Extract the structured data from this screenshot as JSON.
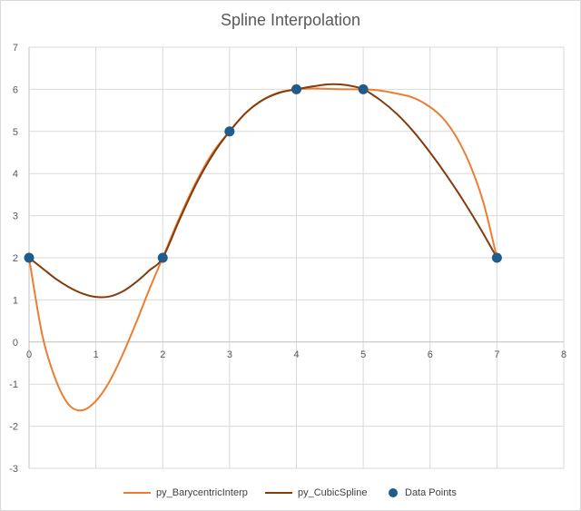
{
  "chart_data": {
    "type": "line",
    "title": "Spline Interpolation",
    "xlim": [
      0,
      8
    ],
    "ylim": [
      -3,
      7
    ],
    "xticks": [
      0,
      1,
      2,
      3,
      4,
      5,
      6,
      7,
      8
    ],
    "yticks": [
      -3,
      -2,
      -1,
      0,
      1,
      2,
      3,
      4,
      5,
      6,
      7
    ],
    "grid": true,
    "legend_position": "bottom",
    "series": [
      {
        "name": "py_BarycentricInterp",
        "kind": "line",
        "color": "#ed7d31",
        "x": [
          0,
          0.2,
          0.4,
          0.6,
          0.8,
          1.0,
          1.2,
          1.4,
          1.6,
          1.8,
          2.0,
          2.25,
          2.5,
          2.75,
          3.0,
          3.25,
          3.5,
          3.75,
          4.0,
          4.25,
          4.5,
          4.75,
          5.0,
          5.25,
          5.5,
          5.75,
          6.0,
          6.2,
          6.4,
          6.6,
          6.8,
          7.0
        ],
        "y": [
          2.0,
          0.15,
          -0.9,
          -1.5,
          -1.62,
          -1.4,
          -0.95,
          -0.3,
          0.45,
          1.25,
          2.0,
          2.95,
          3.8,
          4.5,
          5.0,
          5.45,
          5.75,
          5.93,
          6.0,
          6.02,
          6.01,
          6.0,
          6.0,
          5.97,
          5.9,
          5.8,
          5.58,
          5.3,
          4.85,
          4.2,
          3.3,
          2.0
        ]
      },
      {
        "name": "py_CubicSpline",
        "kind": "line",
        "color": "#843c0c",
        "x": [
          0,
          0.2,
          0.4,
          0.6,
          0.8,
          1.0,
          1.2,
          1.4,
          1.6,
          1.8,
          2.0,
          2.25,
          2.5,
          2.75,
          3.0,
          3.25,
          3.5,
          3.75,
          4.0,
          4.25,
          4.5,
          4.75,
          5.0,
          5.25,
          5.5,
          5.75,
          6.0,
          6.25,
          6.5,
          6.75,
          7.0
        ],
        "y": [
          2.0,
          1.75,
          1.5,
          1.3,
          1.15,
          1.07,
          1.08,
          1.2,
          1.42,
          1.7,
          2.0,
          2.9,
          3.75,
          4.45,
          5.0,
          5.45,
          5.75,
          5.92,
          6.0,
          6.07,
          6.12,
          6.1,
          6.0,
          5.75,
          5.42,
          5.0,
          4.5,
          3.95,
          3.35,
          2.7,
          2.0
        ]
      },
      {
        "name": "Data Points",
        "kind": "scatter",
        "color": "#1f5c8b",
        "x": [
          0,
          2,
          3,
          4,
          5,
          7
        ],
        "y": [
          2,
          2,
          5,
          6,
          6,
          2
        ]
      }
    ]
  }
}
